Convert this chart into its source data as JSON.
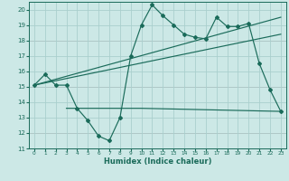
{
  "xlabel": "Humidex (Indice chaleur)",
  "bg_color": "#cce8e6",
  "grid_color": "#aacfcd",
  "pink_grid_color": "#c9a8a8",
  "line_color": "#1a6b5a",
  "xlim": [
    -0.5,
    23.5
  ],
  "ylim": [
    11,
    20.5
  ],
  "yticks": [
    11,
    12,
    13,
    14,
    15,
    16,
    17,
    18,
    19,
    20
  ],
  "xticks": [
    0,
    1,
    2,
    3,
    4,
    5,
    6,
    7,
    8,
    9,
    10,
    11,
    12,
    13,
    14,
    15,
    16,
    17,
    18,
    19,
    20,
    21,
    22,
    23
  ],
  "pink_hlines": [
    12,
    15,
    18
  ],
  "series1_x": [
    0,
    1,
    2,
    3,
    4,
    5,
    6,
    7,
    8,
    9,
    10,
    11,
    12,
    13,
    14,
    15,
    16,
    17,
    18,
    19,
    20,
    21,
    22,
    23
  ],
  "series1_y": [
    15.1,
    15.8,
    15.1,
    15.1,
    13.6,
    12.8,
    11.8,
    11.5,
    13.0,
    17.0,
    19.0,
    20.3,
    19.6,
    19.0,
    18.4,
    18.2,
    18.1,
    19.5,
    18.9,
    18.9,
    19.1,
    16.5,
    14.8,
    13.4
  ],
  "series2_x": [
    3,
    10,
    23
  ],
  "series2_y": [
    13.6,
    13.6,
    13.4
  ],
  "series3_x": [
    0,
    23
  ],
  "series3_y": [
    15.1,
    19.5
  ],
  "series4_x": [
    0,
    23
  ],
  "series4_y": [
    15.1,
    18.4
  ]
}
